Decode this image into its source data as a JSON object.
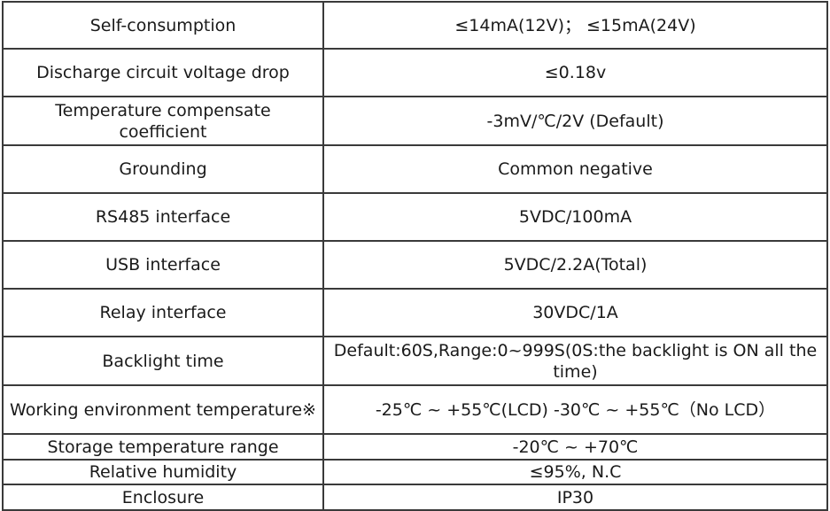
{
  "rows": [
    {
      "param": "Self-consumption",
      "value": "≤14mA(12V)； ≤15mA(24V)"
    },
    {
      "param": "Discharge circuit voltage drop",
      "value": "≤0.18v"
    },
    {
      "param": "Temperature compensate coefficient",
      "value": "-3mV/℃/2V (Default)"
    },
    {
      "param": "Grounding",
      "value": "Common negative"
    },
    {
      "param": "RS485 interface",
      "value": "5VDC/100mA"
    },
    {
      "param": "USB interface",
      "value": "5VDC/2.2A(Total)"
    },
    {
      "param": "Relay interface",
      "value": "30VDC/1A"
    },
    {
      "param": "Backlight time",
      "value": "Default:60S,Range:0~999S(0S:the backlight is ON all the time)"
    },
    {
      "param": "Working environment temperature※",
      "value": "-25℃ ~ +55℃(LCD) -30℃ ~ +55℃（No LCD）"
    },
    {
      "param": "Storage temperature range",
      "value": "-20℃ ~ +70℃"
    },
    {
      "param": "Relative humidity",
      "value": "≤95%, N.C"
    },
    {
      "param": "Enclosure",
      "value": "IP30"
    }
  ]
}
